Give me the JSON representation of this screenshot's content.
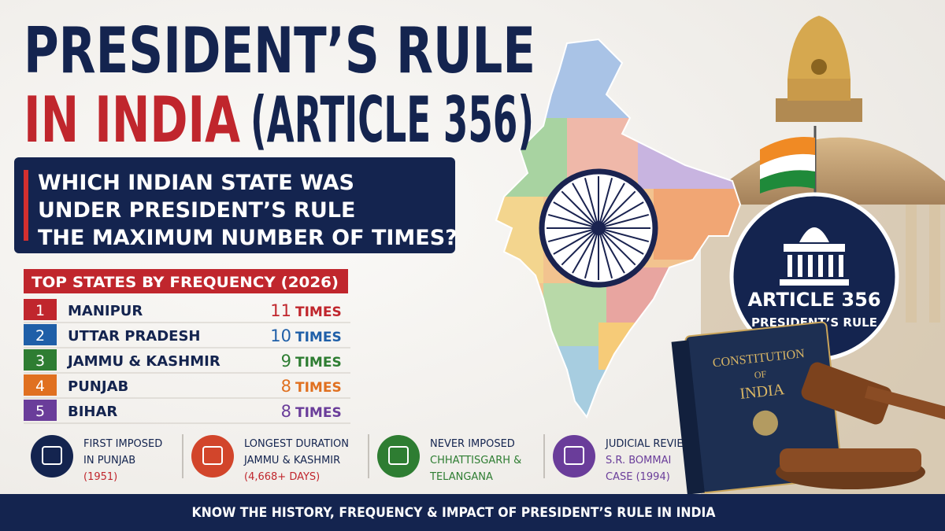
{
  "header": {
    "title_line1": "PRESIDENT’S RULE",
    "title_line2_red": "IN INDIA",
    "title_line2_navy": "(ARTICLE 356)"
  },
  "question": {
    "lines": [
      "WHICH INDIAN STATE WAS",
      "UNDER PRESIDENT’S RULE",
      "THE MAXIMUM NUMBER OF TIMES?"
    ]
  },
  "table": {
    "heading": "TOP STATES BY FREQUENCY (2026)",
    "rows": [
      {
        "rank": 1,
        "state": "MANIPUR",
        "count": 11,
        "unit": "TIMES"
      },
      {
        "rank": 2,
        "state": "UTTAR PRADESH",
        "count": 10,
        "unit": "TIMES"
      },
      {
        "rank": 3,
        "state": "JAMMU & KASHMIR",
        "count": 9,
        "unit": "TIMES"
      },
      {
        "rank": 4,
        "state": "PUNJAB",
        "count": 8,
        "unit": "TIMES"
      },
      {
        "rank": 5,
        "state": "BIHAR",
        "count": 8,
        "unit": "TIMES"
      }
    ]
  },
  "facts": [
    {
      "lines": [
        "FIRST IMPOSED",
        "IN PUNJAB",
        "(1951)"
      ]
    },
    {
      "lines": [
        "LONGEST DURATION",
        "JAMMU & KASHMIR",
        "(4,668+ DAYS)"
      ]
    },
    {
      "lines": [
        "NEVER IMPOSED",
        "CHHATTISGARH &",
        "TELANGANA"
      ]
    },
    {
      "lines": [
        "JUDICIAL REVIEW",
        "S.R. BOMMAI",
        "CASE (1994)"
      ]
    }
  ],
  "badge": {
    "title": "ARTICLE 356",
    "subtitle": "PRESIDENT’S RULE"
  },
  "book": {
    "lines": [
      "CONSTITUTION",
      "OF",
      "INDIA"
    ]
  },
  "footer": {
    "text": "KNOW THE HISTORY, FREQUENCY & IMPACT OF PRESIDENT’S RULE IN INDIA"
  }
}
